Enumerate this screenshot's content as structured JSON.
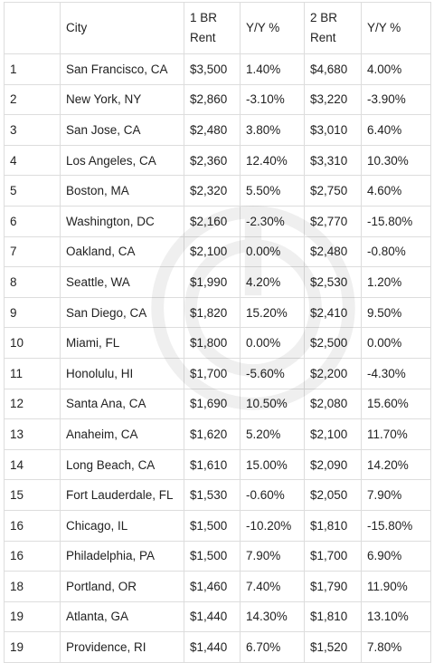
{
  "table": {
    "headers": [
      "",
      "City",
      "1 BR Rent",
      "Y/Y %",
      "2 BR Rent",
      "Y/Y %"
    ],
    "rows": [
      [
        "1",
        "San Francisco, CA",
        "$3,500",
        "1.40%",
        "$4,680",
        "4.00%"
      ],
      [
        "2",
        "New York, NY",
        "$2,860",
        "-3.10%",
        "$3,220",
        "-3.90%"
      ],
      [
        "3",
        "San Jose, CA",
        "$2,480",
        "3.80%",
        "$3,010",
        "6.40%"
      ],
      [
        "4",
        "Los Angeles, CA",
        "$2,360",
        "12.40%",
        "$3,310",
        "10.30%"
      ],
      [
        "5",
        "Boston, MA",
        "$2,320",
        "5.50%",
        "$2,750",
        "4.60%"
      ],
      [
        "6",
        "Washington, DC",
        "$2,160",
        "-2.30%",
        "$2,770",
        "-15.80%"
      ],
      [
        "7",
        "Oakland, CA",
        "$2,100",
        "0.00%",
        "$2,480",
        "-0.80%"
      ],
      [
        "8",
        "Seattle, WA",
        "$1,990",
        "4.20%",
        "$2,530",
        "1.20%"
      ],
      [
        "9",
        "San Diego, CA",
        "$1,820",
        "15.20%",
        "$2,410",
        "9.50%"
      ],
      [
        "10",
        "Miami, FL",
        "$1,800",
        "0.00%",
        "$2,500",
        "0.00%"
      ],
      [
        "11",
        "Honolulu, HI",
        "$1,700",
        "-5.60%",
        "$2,200",
        "-4.30%"
      ],
      [
        "12",
        "Santa Ana, CA",
        "$1,690",
        "10.50%",
        "$2,080",
        "15.60%"
      ],
      [
        "13",
        "Anaheim, CA",
        "$1,620",
        "5.20%",
        "$2,100",
        "11.70%"
      ],
      [
        "14",
        "Long Beach, CA",
        "$1,610",
        "15.00%",
        "$2,090",
        "14.20%"
      ],
      [
        "15",
        "Fort Lauderdale, FL",
        "$1,530",
        "-0.60%",
        "$2,050",
        "7.90%"
      ],
      [
        "16",
        "Chicago, IL",
        "$1,500",
        "-10.20%",
        "$1,810",
        "-15.80%"
      ],
      [
        "16",
        "Philadelphia, PA",
        "$1,500",
        "7.90%",
        "$1,700",
        "6.90%"
      ],
      [
        "18",
        "Portland, OR",
        "$1,460",
        "7.40%",
        "$1,790",
        "11.90%"
      ],
      [
        "19",
        "Atlanta, GA",
        "$1,440",
        "14.30%",
        "$1,810",
        "13.10%"
      ],
      [
        "19",
        "Providence, RI",
        "$1,440",
        "6.70%",
        "$1,520",
        "7.80%"
      ]
    ]
  },
  "watermark_icon": "circular-logo-watermark"
}
